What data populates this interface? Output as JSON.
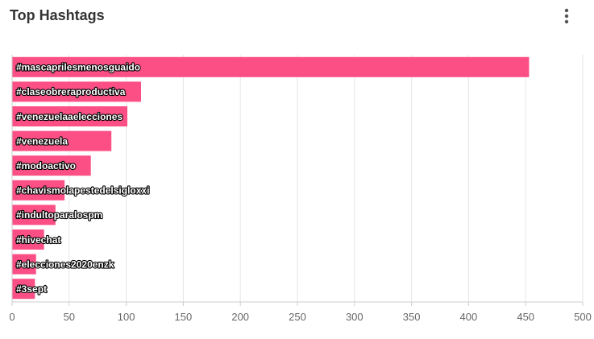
{
  "card": {
    "title": "Top Hashtags",
    "menu_icon": "more-vertical-icon"
  },
  "colors": {
    "bar": "#fc4f86",
    "grid": "#e6e6e6",
    "axis": "#cccccc",
    "tick_text": "#666666",
    "title_text": "#333333"
  },
  "chart_data": {
    "type": "bar",
    "orientation": "horizontal",
    "categories": [
      "#mascaprilesmenosguaido",
      "#claseobreraproductiva",
      "#venezuelaaelecciones",
      "#venezuela",
      "#modoactivo",
      "#chavismolapestedelsigloxxi",
      "#indultoparalospm",
      "#hivechat",
      "#elecciones2020enzk",
      "#3sept"
    ],
    "values": [
      453,
      113,
      101,
      87,
      69,
      46,
      38,
      28,
      21,
      20
    ],
    "title": "",
    "xlabel": "",
    "ylabel": "",
    "xlim": [
      0,
      500
    ],
    "xticks": [
      "0",
      "50",
      "100",
      "150",
      "200",
      "250",
      "300",
      "350",
      "400",
      "450",
      "500"
    ],
    "grid": true,
    "legend": "none"
  }
}
